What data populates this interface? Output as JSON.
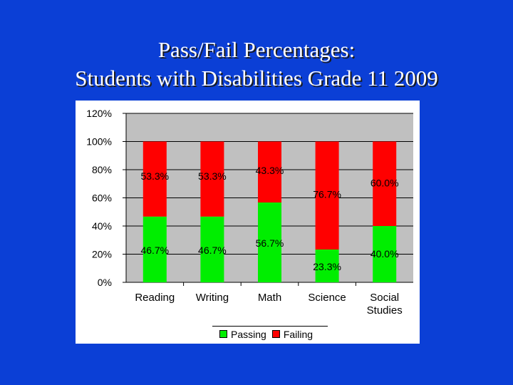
{
  "slide": {
    "title_line1": "Pass/Fail Percentages:",
    "title_line2": "Students with Disabilities Grade 11 2009"
  },
  "colors": {
    "background": "#0b3fd6",
    "passing": "#00ee00",
    "failing": "#ff0000",
    "plot_area": "#c0c0c0"
  },
  "chart_data": {
    "type": "bar",
    "stacked": true,
    "title": "",
    "xlabel": "",
    "ylabel": "",
    "ylim": [
      0,
      120
    ],
    "y_ticks": [
      "0%",
      "20%",
      "40%",
      "60%",
      "80%",
      "100%",
      "120%"
    ],
    "grid": true,
    "legend_position": "bottom",
    "categories": [
      "Reading",
      "Writing",
      "Math",
      "Science",
      "Social Studies"
    ],
    "series": [
      {
        "name": "Passing",
        "values": [
          46.7,
          46.7,
          56.7,
          23.3,
          40.0
        ],
        "labels": [
          "46.7%",
          "46.7%",
          "56.7%",
          "23.3%",
          "40.0%"
        ]
      },
      {
        "name": "Failing",
        "values": [
          53.3,
          53.3,
          43.3,
          76.7,
          60.0
        ],
        "labels": [
          "53.3%",
          "53.3%",
          "43.3%",
          "76.7%",
          "60.0%"
        ]
      }
    ]
  }
}
